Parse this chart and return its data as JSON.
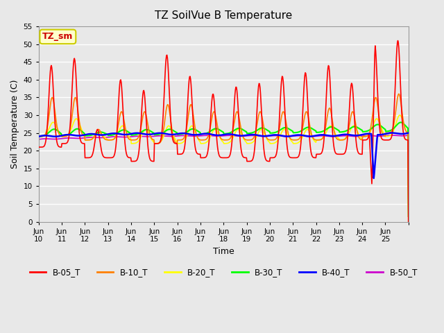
{
  "title": "TZ SoilVue B Temperature",
  "xlabel": "Time",
  "ylabel": "Soil Temperature (C)",
  "ylim": [
    0,
    55
  ],
  "yticks": [
    0,
    5,
    10,
    15,
    20,
    25,
    30,
    35,
    40,
    45,
    50,
    55
  ],
  "xtick_labels": [
    "Jun|10",
    "Jun|11",
    "Jun|12",
    "Jun|13",
    "Jun|14",
    "Jun|15",
    "Jun|16",
    "Jun|17",
    "Jun|18",
    "Jun|19",
    "Jun|20",
    "Jun|21",
    "Jun|22",
    "Jun|23",
    "Jun|24",
    "Jun|25"
  ],
  "series_colors": {
    "B-05_T": "#ff0000",
    "B-10_T": "#ff8000",
    "B-20_T": "#ffff00",
    "B-30_T": "#00ff00",
    "B-40_T": "#0000ff",
    "B-50_T": "#cc00cc"
  },
  "bg_color": "#e8e8e8",
  "plot_bg_color": "#e8e8e8",
  "grid_color": "#ffffff",
  "annotation_box": {
    "text": "TZ_sm",
    "facecolor": "#ffffcc",
    "edgecolor": "#cccc00"
  },
  "num_days": 16,
  "legend_labels": [
    "B-05_T",
    "B-10_T",
    "B-20_T",
    "B-30_T",
    "B-40_T",
    "B-50_T"
  ]
}
